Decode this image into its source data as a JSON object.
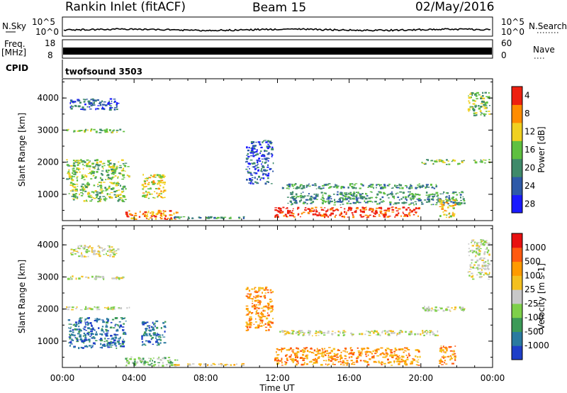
{
  "header": {
    "title": "Rankin Inlet (fitACF)",
    "beam": "Beam 15",
    "date": "02/May/2016"
  },
  "strips": {
    "nsky_label": "N.Sky",
    "nsearch_label": "N.Search",
    "nsky_ticks": [
      "10^5",
      "10^0"
    ],
    "freq_label": "Freq.",
    "freq_unit": "[MHz]",
    "freq_ticks": [
      "18",
      "8"
    ],
    "nave_label": "Nave",
    "nave_ticks": [
      "60",
      "0"
    ],
    "cpid_label": "CPID",
    "cpid_value": "twofsound 3503"
  },
  "x_axis": {
    "label": "Time UT",
    "ticks": [
      "00:00",
      "04:00",
      "08:00",
      "12:00",
      "16:00",
      "20:00",
      "00:00"
    ]
  },
  "chart_data": [
    {
      "type": "heatmap",
      "name": "power",
      "xlabel": "Time UT",
      "ylabel": "Slant Range [km]",
      "xlim_hours": [
        0,
        24
      ],
      "ylim_km": [
        180,
        4600
      ],
      "yticks": [
        "1000",
        "2000",
        "3000",
        "4000"
      ],
      "colorbar": {
        "label": "Power [dB]",
        "tick_labels": [
          "4",
          "8",
          "12",
          "16",
          "20",
          "24",
          "28"
        ],
        "colors": [
          "#1a1aff",
          "#2e5aa8",
          "#3f8a6a",
          "#5fc040",
          "#f0d020",
          "#ff8c00",
          "#ee2010"
        ]
      },
      "regions": [
        {
          "t0": 0.2,
          "t1": 3.5,
          "r0": 2900,
          "r1": 3050,
          "level": 3
        },
        {
          "t0": 0.4,
          "t1": 3.2,
          "r0": 3600,
          "r1": 4000,
          "level": 1
        },
        {
          "t0": 0.2,
          "t1": 3.8,
          "r0": 1400,
          "r1": 2100,
          "level": 3
        },
        {
          "t0": 0.3,
          "t1": 3.6,
          "r0": 750,
          "r1": 1400,
          "level": 3
        },
        {
          "t0": 3.5,
          "t1": 6.5,
          "r0": 200,
          "r1": 520,
          "level": 5
        },
        {
          "t0": 4.4,
          "t1": 5.8,
          "r0": 850,
          "r1": 1650,
          "level": 4
        },
        {
          "t0": 6.0,
          "t1": 10.2,
          "r0": 220,
          "r1": 320,
          "level": 2
        },
        {
          "t0": 10.2,
          "t1": 11.8,
          "r0": 1300,
          "r1": 2700,
          "level": 1
        },
        {
          "t0": 11.8,
          "t1": 20.0,
          "r0": 260,
          "r1": 620,
          "level": 6
        },
        {
          "t0": 12.0,
          "t1": 21.0,
          "r0": 1150,
          "r1": 1350,
          "level": 2
        },
        {
          "t0": 12.5,
          "t1": 22.5,
          "r0": 650,
          "r1": 1100,
          "level": 2
        },
        {
          "t0": 20.0,
          "t1": 22.5,
          "r0": 1900,
          "r1": 2100,
          "level": 3
        },
        {
          "t0": 21.0,
          "t1": 22.0,
          "r0": 250,
          "r1": 900,
          "level": 4
        },
        {
          "t0": 22.6,
          "t1": 23.9,
          "r0": 3400,
          "r1": 4200,
          "level": 3
        },
        {
          "t0": 22.8,
          "t1": 23.9,
          "r0": 1950,
          "r1": 2100,
          "level": 3
        }
      ]
    },
    {
      "type": "heatmap",
      "name": "velocity",
      "xlabel": "Time UT",
      "ylabel": "Slant Range [km]",
      "xlim_hours": [
        0,
        24
      ],
      "ylim_km": [
        180,
        4600
      ],
      "yticks": [
        "1000",
        "2000",
        "3000",
        "4000"
      ],
      "colorbar": {
        "label": "Velocity [m s-1]",
        "tick_labels": [
          "1000",
          "500",
          "100",
          "25",
          "-25",
          "-100",
          "-500",
          "-1000"
        ],
        "colors": [
          "#1f3fc8",
          "#2a7aa0",
          "#3c9a58",
          "#7ed04a",
          "#c8c8c8",
          "#f4c020",
          "#ff9a00",
          "#ff5a10",
          "#e81010"
        ]
      },
      "regions": [
        {
          "t0": 0.2,
          "t1": 3.5,
          "r0": 2900,
          "r1": 3050,
          "level": 4
        },
        {
          "t0": 0.4,
          "t1": 3.2,
          "r0": 3600,
          "r1": 4000,
          "level": 4
        },
        {
          "t0": 0.2,
          "t1": 3.8,
          "r0": 1950,
          "r1": 2100,
          "level": 4
        },
        {
          "t0": 0.3,
          "t1": 3.6,
          "r0": 750,
          "r1": 1750,
          "level": 1
        },
        {
          "t0": 3.4,
          "t1": 6.5,
          "r0": 200,
          "r1": 520,
          "level": 3
        },
        {
          "t0": 4.4,
          "t1": 5.8,
          "r0": 850,
          "r1": 1650,
          "level": 1
        },
        {
          "t0": 6.0,
          "t1": 10.2,
          "r0": 220,
          "r1": 320,
          "level": 5
        },
        {
          "t0": 10.2,
          "t1": 11.8,
          "r0": 1300,
          "r1": 2700,
          "level": 6
        },
        {
          "t0": 11.8,
          "t1": 20.0,
          "r0": 230,
          "r1": 820,
          "level": 6
        },
        {
          "t0": 12.0,
          "t1": 21.0,
          "r0": 1150,
          "r1": 1350,
          "level": 4
        },
        {
          "t0": 20.0,
          "t1": 22.5,
          "r0": 1900,
          "r1": 2100,
          "level": 4
        },
        {
          "t0": 21.0,
          "t1": 22.0,
          "r0": 250,
          "r1": 900,
          "level": 6
        },
        {
          "t0": 22.6,
          "t1": 23.9,
          "r0": 2900,
          "r1": 4200,
          "level": 4
        }
      ]
    }
  ]
}
